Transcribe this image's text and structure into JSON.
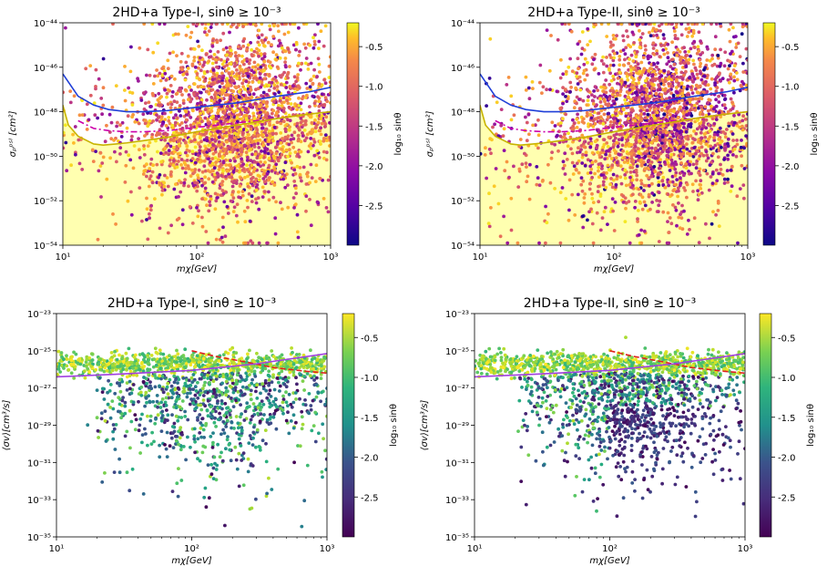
{
  "chart_data": [
    {
      "type": "scatter",
      "panel": "top-left",
      "title": "2HD+a Type-I, sinθ ≥ 10⁻³",
      "xlabel": "mχ[GeV]",
      "ylabel": "σₚᵖˢᴵ [cm²]",
      "xscale": "log",
      "yscale": "log",
      "xlim": [
        10,
        1000
      ],
      "ylim": [
        1e-54,
        1e-44
      ],
      "xticks": [
        "10¹",
        "10²",
        "10³"
      ],
      "yticks": [
        "10⁻⁵⁴",
        "10⁻⁵²",
        "10⁻⁵⁰",
        "10⁻⁴⁸",
        "10⁻⁴⁶",
        "10⁻⁴⁴"
      ],
      "colorbar": {
        "label": "log₁₀ sinθ",
        "colormap": "plasma",
        "range": [
          -3.0,
          -0.2
        ],
        "ticks": [
          "-0.5",
          "-1.0",
          "-1.5",
          "-2.0",
          "-2.5"
        ],
        "tick_values": [
          -0.5,
          -1.0,
          -1.5,
          -2.0,
          -2.5
        ]
      },
      "series": [
        {
          "style": "solid",
          "color": "#1f3fd8",
          "x": [
            10,
            13,
            17,
            22,
            30,
            40,
            60,
            100,
            200,
            400,
            700,
            1000
          ],
          "y": [
            -46.3,
            -47.3,
            -47.7,
            -47.9,
            -48.0,
            -48.0,
            -47.95,
            -47.8,
            -47.6,
            -47.3,
            -47.1,
            -46.9
          ]
        },
        {
          "style": "dashdot",
          "color": "#cc00aa",
          "x": [
            13,
            17,
            22,
            30,
            40,
            60,
            100,
            200,
            400,
            700,
            1000
          ],
          "y": [
            -48.4,
            -48.75,
            -48.85,
            -48.9,
            -48.9,
            -48.85,
            -48.7,
            -48.5,
            -48.3,
            -48.1,
            -48.0
          ]
        },
        {
          "style": "solid",
          "color": "#c8b400",
          "x": [
            10,
            11,
            13,
            17,
            20,
            25,
            30,
            40,
            60,
            100,
            200,
            400,
            700,
            1000
          ],
          "y": [
            -47.7,
            -48.6,
            -49.1,
            -49.45,
            -49.5,
            -49.45,
            -49.4,
            -49.3,
            -49.15,
            -48.9,
            -48.6,
            -48.3,
            -48.1,
            -48.0
          ]
        }
      ],
      "fill": {
        "color": "#ffffb0",
        "below_series": 2
      },
      "points": {
        "seed": 11,
        "count": 2600,
        "cmin": -3.0,
        "cmax": -0.2
      }
    },
    {
      "type": "scatter",
      "panel": "top-right",
      "title": "2HD+a Type-II, sinθ ≥ 10⁻³",
      "xlabel": "mχ[GeV]",
      "ylabel": "σₚᵖˢᴵ [cm²]",
      "xscale": "log",
      "yscale": "log",
      "xlim": [
        10,
        1000
      ],
      "ylim": [
        1e-54,
        1e-44
      ],
      "xticks": [
        "10¹",
        "10²",
        "10³"
      ],
      "yticks": [
        "10⁻⁵⁴",
        "10⁻⁵²",
        "10⁻⁵⁰",
        "10⁻⁴⁸",
        "10⁻⁴⁶",
        "10⁻⁴⁴"
      ],
      "colorbar": {
        "label": "log₁₀ sinθ",
        "colormap": "plasma",
        "range": [
          -3.0,
          -0.2
        ],
        "ticks": [
          "-0.5",
          "-1.0",
          "-1.5",
          "-2.0",
          "-2.5"
        ],
        "tick_values": [
          -0.5,
          -1.0,
          -1.5,
          -2.0,
          -2.5
        ]
      },
      "series": [
        {
          "style": "solid",
          "color": "#1f3fd8",
          "x": [
            10,
            13,
            17,
            22,
            30,
            40,
            60,
            100,
            200,
            400,
            700,
            1000
          ],
          "y": [
            -46.3,
            -47.3,
            -47.7,
            -47.9,
            -48.0,
            -48.0,
            -47.95,
            -47.8,
            -47.6,
            -47.3,
            -47.1,
            -46.9
          ]
        },
        {
          "style": "dashdot",
          "color": "#cc00aa",
          "x": [
            13,
            17,
            22,
            30,
            40,
            60,
            100,
            200,
            400,
            700,
            1000
          ],
          "y": [
            -48.4,
            -48.75,
            -48.85,
            -48.9,
            -48.9,
            -48.85,
            -48.7,
            -48.5,
            -48.3,
            -48.1,
            -48.0
          ]
        },
        {
          "style": "solid",
          "color": "#c8b400",
          "x": [
            10,
            11,
            13,
            17,
            20,
            25,
            30,
            40,
            60,
            100,
            200,
            400,
            700,
            1000
          ],
          "y": [
            -47.7,
            -48.6,
            -49.1,
            -49.45,
            -49.5,
            -49.45,
            -49.4,
            -49.3,
            -49.15,
            -48.9,
            -48.6,
            -48.3,
            -48.1,
            -48.0
          ]
        }
      ],
      "fill": {
        "color": "#ffffb0",
        "below_series": 2
      },
      "points": {
        "seed": 23,
        "count": 2600,
        "cmin": -3.0,
        "cmax": -0.2
      }
    },
    {
      "type": "scatter",
      "panel": "bottom-left",
      "title": "2HD+a Type-I, sinθ ≥ 10⁻³",
      "xlabel": "mχ[GeV]",
      "ylabel": "⟨σv⟩[cm³/s]",
      "xscale": "log",
      "yscale": "log",
      "xlim": [
        10,
        1000
      ],
      "ylim": [
        1e-35,
        1e-23
      ],
      "xticks": [
        "10¹",
        "10²",
        "10³"
      ],
      "yticks": [
        "10⁻³⁵",
        "10⁻³³",
        "10⁻³¹",
        "10⁻²⁹",
        "10⁻²⁷",
        "10⁻²⁵",
        "10⁻²³"
      ],
      "colorbar": {
        "label": "log₁₀ sinθ",
        "colormap": "viridis",
        "range": [
          -3.0,
          -0.2
        ],
        "ticks": [
          "-0.5",
          "-1.0",
          "-1.5",
          "-2.0",
          "-2.5"
        ],
        "tick_values": [
          -0.5,
          -1.0,
          -1.5,
          -2.0,
          -2.5
        ]
      },
      "series": [
        {
          "style": "dashed",
          "color": "#e02020",
          "x": [
            100,
            150,
            250,
            400,
            700,
            1000
          ],
          "y": [
            -25.0,
            -25.3,
            -25.6,
            -25.9,
            -26.1,
            -26.2
          ]
        },
        {
          "style": "solid",
          "color": "#a040e0",
          "x": [
            10,
            30,
            100,
            300,
            1000
          ],
          "y": [
            -26.4,
            -26.25,
            -26.05,
            -25.7,
            -25.15
          ]
        }
      ],
      "points": {
        "seed": 37,
        "count": 1600,
        "cmin": -3.0,
        "cmax": -0.2
      }
    },
    {
      "type": "scatter",
      "panel": "bottom-right",
      "title": "2HD+a Type-II, sinθ ≥ 10⁻³",
      "xlabel": "mχ[GeV]",
      "ylabel": "⟨σv⟩[cm³/s]",
      "xscale": "log",
      "yscale": "log",
      "xlim": [
        10,
        1000
      ],
      "ylim": [
        1e-35,
        1e-23
      ],
      "xticks": [
        "10¹",
        "10²",
        "10³"
      ],
      "yticks": [
        "10⁻³⁵",
        "10⁻³³",
        "10⁻³¹",
        "10⁻²⁹",
        "10⁻²⁷",
        "10⁻²⁵",
        "10⁻²³"
      ],
      "colorbar": {
        "label": "log₁₀ sinθ",
        "colormap": "viridis",
        "range": [
          -3.0,
          -0.2
        ],
        "ticks": [
          "-0.5",
          "-1.0",
          "-1.5",
          "-2.0",
          "-2.5"
        ],
        "tick_values": [
          -0.5,
          -1.0,
          -1.5,
          -2.0,
          -2.5
        ]
      },
      "series": [
        {
          "style": "dashed",
          "color": "#e02020",
          "x": [
            100,
            150,
            250,
            400,
            700,
            1000
          ],
          "y": [
            -25.0,
            -25.3,
            -25.6,
            -25.9,
            -26.1,
            -26.2
          ]
        },
        {
          "style": "solid",
          "color": "#a040e0",
          "x": [
            10,
            30,
            100,
            300,
            1000
          ],
          "y": [
            -26.4,
            -26.25,
            -26.05,
            -25.7,
            -25.15
          ]
        }
      ],
      "points": {
        "seed": 53,
        "count": 1900,
        "cmin": -3.0,
        "cmax": -0.2
      }
    }
  ]
}
